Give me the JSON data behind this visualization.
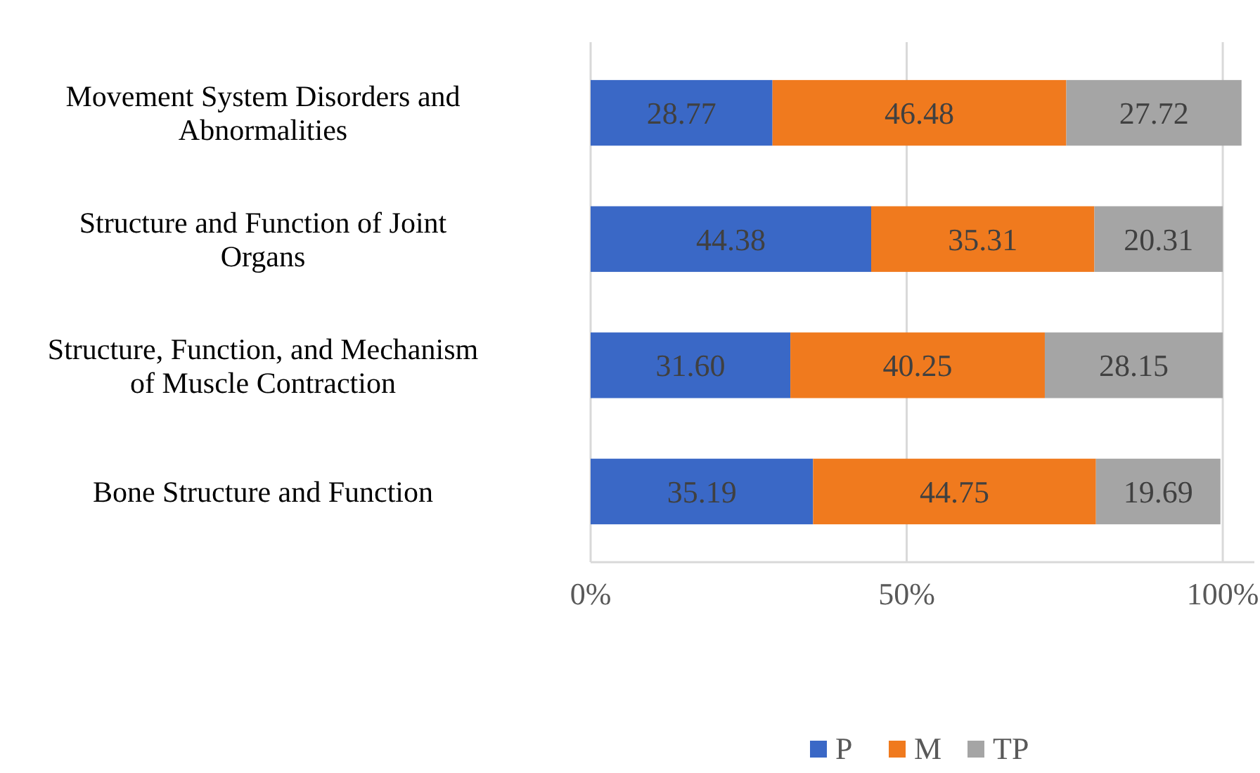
{
  "chart_data": {
    "type": "bar",
    "orientation": "horizontal",
    "stacked": true,
    "categories": [
      "Movement System Disorders and Abnormalities",
      "Structure and Function of Joint Organs",
      "Structure, Function, and Mechanism of Muscle Contraction",
      "Bone Structure and Function"
    ],
    "series": [
      {
        "name": "P",
        "color": "#3a68c6",
        "values": [
          28.77,
          44.38,
          31.6,
          35.19
        ],
        "value_labels": [
          "28.77",
          "44.38",
          "31.60",
          "35.19"
        ]
      },
      {
        "name": "M",
        "color": "#f07a1e",
        "values": [
          46.48,
          35.31,
          40.25,
          44.75
        ],
        "value_labels": [
          "46.48",
          "35.31",
          "40.25",
          "44.75"
        ]
      },
      {
        "name": "TP",
        "color": "#a5a5a5",
        "values": [
          27.72,
          20.31,
          28.15,
          19.69
        ],
        "value_labels": [
          "27.72",
          "20.31",
          "28.15",
          "19.69"
        ]
      }
    ],
    "xlim": [
      0,
      105
    ],
    "xticks": [
      {
        "value": 0,
        "label": "0%"
      },
      {
        "value": 50,
        "label": "50%"
      },
      {
        "value": 100,
        "label": "100%"
      }
    ],
    "grid": "x",
    "legend": "bottom"
  }
}
